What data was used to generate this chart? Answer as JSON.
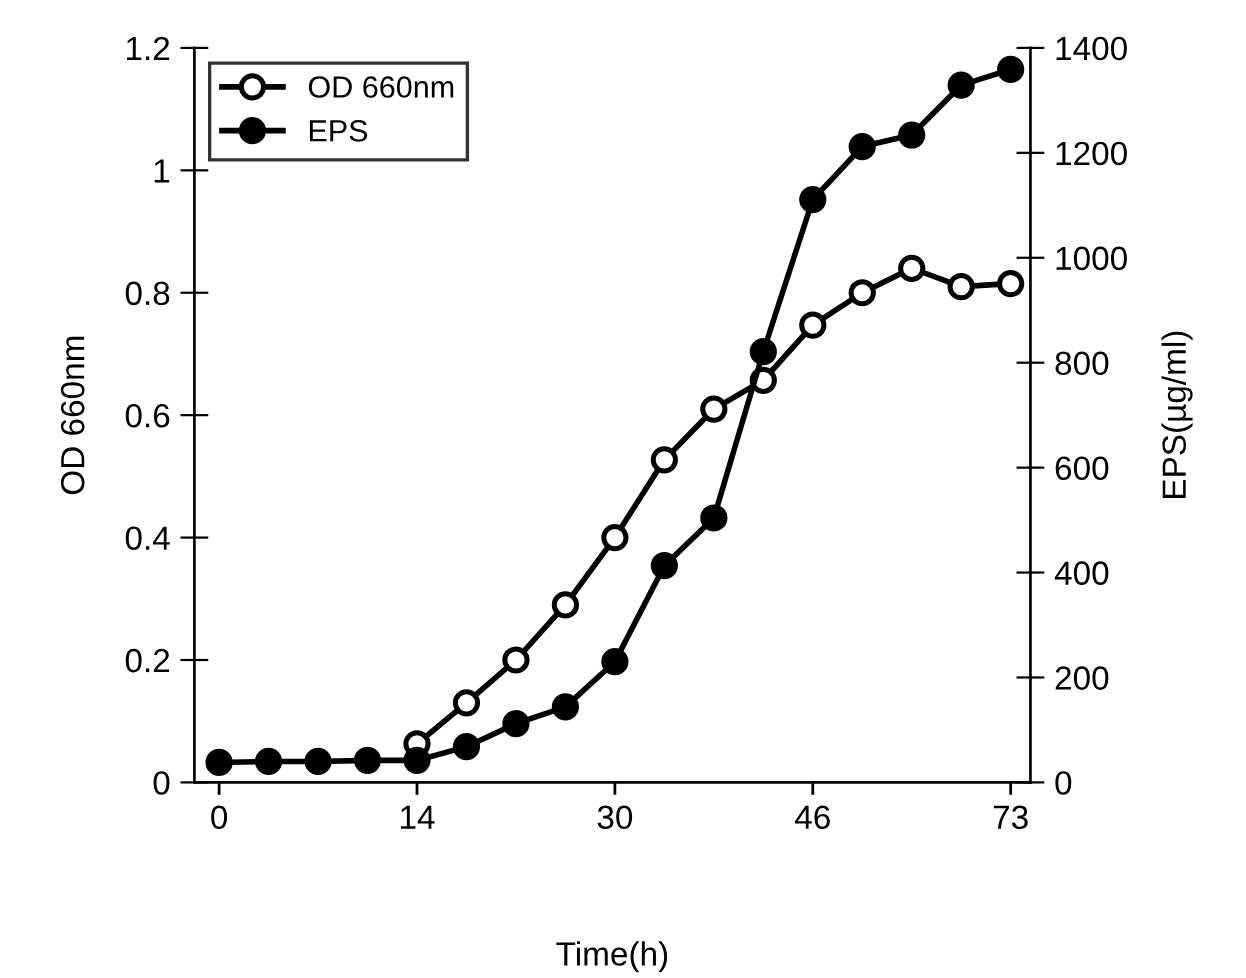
{
  "chart_data": {
    "type": "line",
    "xlabel": "Time(h)",
    "ylabel": "OD 660nm",
    "y2label": "EPS(µg/ml)",
    "categories": [
      "0",
      null,
      null,
      null,
      "14",
      null,
      null,
      null,
      "30",
      null,
      null,
      null,
      "46",
      null,
      null,
      null,
      "73"
    ],
    "series": [
      {
        "name": "OD 660nm",
        "color": "#000000",
        "values": [
          null,
          null,
          null,
          null,
          0.063,
          0.13,
          0.2,
          0.29,
          0.4,
          0.527,
          0.61,
          0.657,
          0.747,
          0.8,
          0.84,
          0.81,
          0.815
        ]
      },
      {
        "name": "EPS",
        "color": "#000000",
        "axis": "y2",
        "values": [
          38,
          40,
          40,
          42,
          42,
          68,
          112,
          144,
          230,
          413,
          504,
          821,
          1111,
          1212,
          1234,
          1329,
          1359
        ]
      }
    ],
    "ylim": [
      0,
      1.2
    ],
    "yticks": [
      0,
      0.2,
      0.4,
      0.6,
      0.8,
      1,
      1.2
    ],
    "y2lim": [
      0,
      1400
    ],
    "y2ticks": [
      0,
      200,
      400,
      600,
      800,
      1000,
      1200,
      1400
    ],
    "marker": "circle",
    "line_style": "solid",
    "grid": false,
    "legend": "top left"
  }
}
